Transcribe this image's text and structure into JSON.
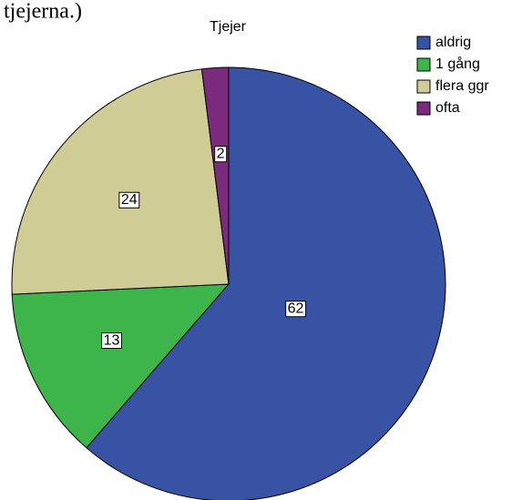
{
  "chart_data": {
    "type": "pie",
    "annotation": "tjejerna.)",
    "title": "Tjejer",
    "categories": [
      "aldrig",
      "1 gång",
      "flera ggr",
      "ofta"
    ],
    "values": [
      62,
      13,
      24,
      2
    ],
    "colors": [
      "#3953a4",
      "#3db54a",
      "#cfcc96",
      "#7b2a7e"
    ],
    "legend": "top-right"
  }
}
